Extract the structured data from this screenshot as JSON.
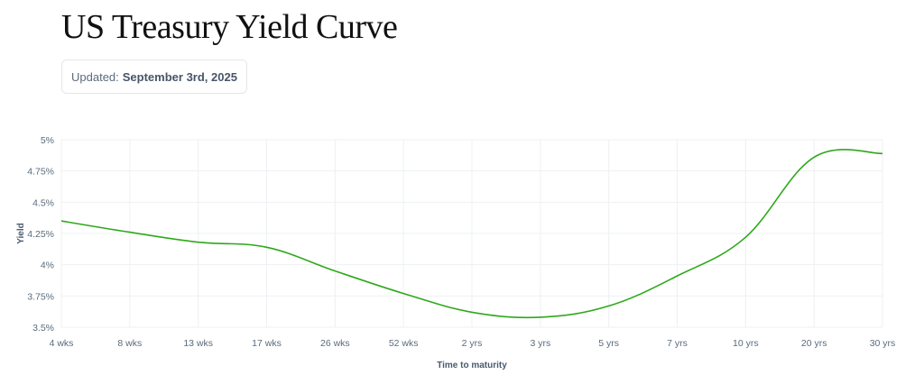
{
  "page": {
    "title": "US Treasury Yield Curve",
    "updated_label": "Updated:",
    "updated_date": "September 3rd, 2025"
  },
  "chart_data": {
    "type": "line",
    "categories": [
      "4 wks",
      "8 wks",
      "13 wks",
      "17 wks",
      "26 wks",
      "52 wks",
      "2 yrs",
      "3 yrs",
      "5 yrs",
      "7 yrs",
      "10 yrs",
      "20 yrs",
      "30 yrs"
    ],
    "series": [
      {
        "values": [
          4.35,
          4.26,
          4.18,
          4.14,
          3.95,
          3.77,
          3.62,
          3.58,
          3.67,
          3.91,
          4.22,
          4.86,
          4.89
        ]
      }
    ],
    "y_ticks": [
      "3.5%",
      "3.75%",
      "4%",
      "4.25%",
      "4.5%",
      "4.75%",
      "5%"
    ],
    "y_tick_values": [
      3.5,
      3.75,
      4,
      4.25,
      4.5,
      4.75,
      5
    ],
    "ylim": [
      3.5,
      5
    ],
    "xlabel": "Time to maturity",
    "ylabel": "Yield",
    "grid": true,
    "line_color": "#2ea81a",
    "grid_color": "#eef0f3"
  }
}
